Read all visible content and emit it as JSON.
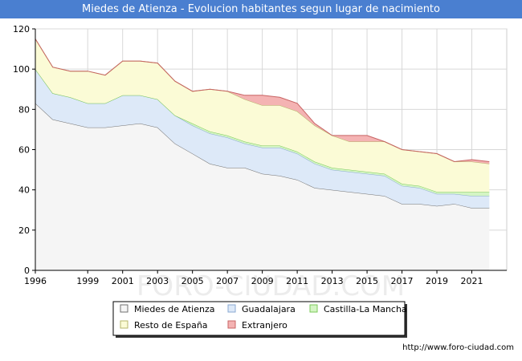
{
  "chart_data": {
    "type": "area",
    "title": "Miedes de Atienza - Evolucion habitantes segun lugar de nacimiento",
    "xlabel": "",
    "ylabel": "",
    "xlim": [
      1996,
      2023
    ],
    "ylim": [
      0,
      120
    ],
    "x_ticks": [
      1996,
      1999,
      2001,
      2003,
      2005,
      2007,
      2009,
      2011,
      2013,
      2015,
      2017,
      2019,
      2021
    ],
    "y_ticks": [
      0,
      20,
      40,
      60,
      80,
      100,
      120
    ],
    "grid": true,
    "stacked": true,
    "legend_position": "bottom",
    "x": [
      1996,
      1997,
      1998,
      1999,
      2000,
      2001,
      2002,
      2003,
      2004,
      2005,
      2006,
      2007,
      2008,
      2009,
      2010,
      2011,
      2012,
      2013,
      2014,
      2015,
      2016,
      2017,
      2018,
      2019,
      2020,
      2021,
      2022
    ],
    "series": [
      {
        "name": "Miedes de Atienza",
        "color": "#f5f5f5",
        "line": "#707070",
        "values": [
          83,
          75,
          73,
          71,
          71,
          72,
          73,
          71,
          63,
          58,
          53,
          51,
          51,
          48,
          47,
          45,
          41,
          40,
          39,
          38,
          37,
          33,
          33,
          32,
          33,
          31,
          31
        ]
      },
      {
        "name": "Guadalajara",
        "color": "#dde9f8",
        "line": "#8aa9d2",
        "values": [
          17,
          13,
          13,
          12,
          12,
          15,
          14,
          14,
          14,
          14,
          15,
          15,
          12,
          13,
          14,
          13,
          12,
          10,
          10,
          10,
          10,
          9,
          8,
          6,
          5,
          6,
          6
        ]
      },
      {
        "name": "Castilla-La Mancha",
        "color": "#d4f5c4",
        "line": "#7bc95a",
        "values": [
          0,
          0,
          0,
          0,
          0,
          0,
          0,
          0,
          0,
          1,
          1,
          1,
          1,
          1,
          1,
          1,
          1,
          1,
          1,
          1,
          1,
          1,
          1,
          1,
          1,
          2,
          2
        ]
      },
      {
        "name": "Resto de España",
        "color": "#fbfbd6",
        "line": "#b6b66c",
        "values": [
          15,
          13,
          13,
          16,
          14,
          17,
          17,
          18,
          17,
          16,
          21,
          22,
          21,
          20,
          20,
          20,
          18,
          16,
          14,
          15,
          16,
          17,
          17,
          19,
          15,
          15,
          14
        ]
      },
      {
        "name": "Extranjero",
        "color": "#f4b3b3",
        "line": "#c86464",
        "values": [
          0,
          0,
          0,
          0,
          0,
          0,
          0,
          0,
          0,
          0,
          0,
          0,
          2,
          5,
          4,
          4,
          1,
          0,
          3,
          3,
          0,
          0,
          0,
          0,
          0,
          1,
          1
        ]
      }
    ],
    "source_url": "http://www.foro-ciudad.com",
    "watermark": "FORO-CIUDAD.COM"
  }
}
